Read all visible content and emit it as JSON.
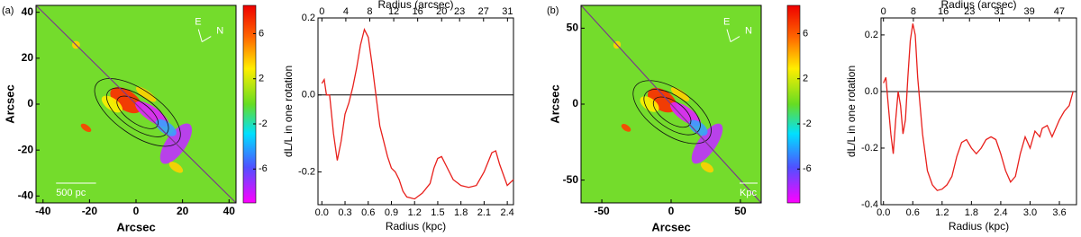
{
  "chart_data": [
    {
      "type": "map",
      "panel_label": "(a)",
      "xlabel": "Arcsec",
      "ylabel": "Arcsec",
      "xlim": [
        -43,
        43
      ],
      "xticks": [
        -40,
        -20,
        0,
        20,
        40
      ],
      "ylim": [
        -43,
        43
      ],
      "yticks": [
        -40,
        -20,
        0,
        20,
        40
      ],
      "colorbar_lim": [
        -9,
        8.5
      ],
      "colorbar_ticks": [
        -6,
        -2,
        2,
        6
      ],
      "annotations": [
        "E",
        "N",
        "500 pc"
      ]
    },
    {
      "type": "line",
      "xlabel": "Radius (kpc)",
      "ylabel": "dL/L in one rotation",
      "x2label": "Radius (arcsec)",
      "xlim": [
        -0.05,
        2.48
      ],
      "xticks": [
        {
          "value": 0,
          "label": "0.0"
        },
        0.3,
        0.6,
        0.9,
        1.2,
        1.5,
        1.8,
        2.1,
        2.4
      ],
      "x2lim": [
        -0.65,
        32
      ],
      "x2ticks": [
        0,
        4,
        8,
        12,
        16,
        20,
        23,
        27,
        31
      ],
      "ylim": [
        -0.285,
        0.2
      ],
      "yticks": [
        -0.2,
        {
          "value": 0,
          "label": "0.0"
        },
        0.2
      ],
      "color": "#e8201c",
      "x": [
        0.0,
        0.03,
        0.06,
        0.1,
        0.15,
        0.2,
        0.25,
        0.3,
        0.35,
        0.4,
        0.45,
        0.5,
        0.55,
        0.6,
        0.65,
        0.7,
        0.75,
        0.8,
        0.85,
        0.9,
        0.95,
        1.0,
        1.05,
        1.1,
        1.2,
        1.3,
        1.4,
        1.45,
        1.5,
        1.55,
        1.6,
        1.7,
        1.8,
        1.9,
        2.0,
        2.1,
        2.2,
        2.25,
        2.3,
        2.4,
        2.48
      ],
      "values": [
        0.03,
        0.04,
        0.0,
        0.0,
        -0.1,
        -0.17,
        -0.12,
        -0.05,
        -0.02,
        0.02,
        0.07,
        0.13,
        0.17,
        0.15,
        0.08,
        0.0,
        -0.08,
        -0.12,
        -0.16,
        -0.19,
        -0.2,
        -0.22,
        -0.25,
        -0.265,
        -0.27,
        -0.255,
        -0.23,
        -0.19,
        -0.165,
        -0.16,
        -0.18,
        -0.22,
        -0.235,
        -0.24,
        -0.235,
        -0.2,
        -0.15,
        -0.145,
        -0.18,
        -0.235,
        -0.22
      ]
    },
    {
      "type": "map",
      "panel_label": "(b)",
      "xlabel": "Arcsec",
      "ylabel": "Arcsec",
      "xlim": [
        -65,
        65
      ],
      "xticks": [
        -50,
        0,
        50
      ],
      "ylim": [
        -65,
        65
      ],
      "yticks": [
        -50,
        0,
        50
      ],
      "colorbar_lim": [
        -9,
        8.5
      ],
      "colorbar_ticks": [
        -6,
        -2,
        2,
        6
      ],
      "annotations": [
        "E",
        "N",
        "Kpc"
      ]
    },
    {
      "type": "line",
      "xlabel": "Radius (kpc)",
      "ylabel": "dL/L in one rotation",
      "x2label": "Radius (arcsec)",
      "xlim": [
        -0.05,
        3.95
      ],
      "xticks": [
        {
          "value": 0,
          "label": "0.0"
        },
        0.6,
        1.2,
        1.8,
        2.4,
        {
          "value": 3,
          "label": "3.0"
        },
        3.6
      ],
      "x2lim": [
        -0.65,
        51.6
      ],
      "x2ticks": [
        0,
        8,
        16,
        23,
        31,
        39,
        47
      ],
      "ylim": [
        -0.4,
        0.26
      ],
      "yticks": [
        -0.4,
        -0.2,
        {
          "value": 0,
          "label": "0.0"
        },
        0.2
      ],
      "color": "#e8201c",
      "x": [
        0.0,
        0.05,
        0.1,
        0.15,
        0.2,
        0.25,
        0.3,
        0.35,
        0.4,
        0.45,
        0.5,
        0.55,
        0.6,
        0.65,
        0.7,
        0.8,
        0.9,
        1.0,
        1.1,
        1.2,
        1.3,
        1.4,
        1.5,
        1.6,
        1.7,
        1.8,
        1.9,
        2.0,
        2.1,
        2.2,
        2.3,
        2.4,
        2.5,
        2.6,
        2.7,
        2.8,
        2.9,
        3.0,
        3.05,
        3.1,
        3.2,
        3.25,
        3.35,
        3.45,
        3.5,
        3.6,
        3.7,
        3.8,
        3.88
      ],
      "values": [
        0.03,
        0.05,
        -0.05,
        -0.15,
        -0.22,
        -0.1,
        0.0,
        -0.05,
        -0.15,
        -0.1,
        0.05,
        0.18,
        0.24,
        0.2,
        0.05,
        -0.15,
        -0.28,
        -0.33,
        -0.35,
        -0.345,
        -0.33,
        -0.3,
        -0.23,
        -0.18,
        -0.17,
        -0.2,
        -0.22,
        -0.2,
        -0.17,
        -0.16,
        -0.17,
        -0.22,
        -0.28,
        -0.32,
        -0.3,
        -0.22,
        -0.16,
        -0.2,
        -0.17,
        -0.14,
        -0.16,
        -0.13,
        -0.12,
        -0.16,
        -0.14,
        -0.1,
        -0.07,
        -0.05,
        0.0
      ]
    }
  ]
}
